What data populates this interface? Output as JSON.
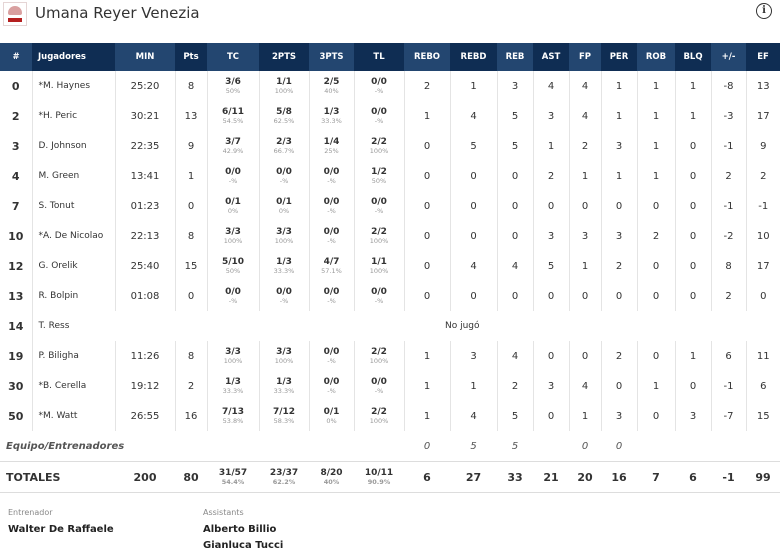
{
  "team": {
    "name": "Umana Reyer Venezia",
    "logo_text": "REYER",
    "info_icon": "info-icon"
  },
  "columns": [
    "#",
    "Jugadores",
    "MIN",
    "Pts",
    "TC",
    "2PTS",
    "3PTS",
    "TL",
    "REBO",
    "REBD",
    "REB",
    "AST",
    "FP",
    "PER",
    "ROB",
    "BLQ",
    "+/-",
    "EF"
  ],
  "players": [
    {
      "num": "0",
      "name": "*M. Haynes",
      "min": "25:20",
      "pts": "8",
      "tc": [
        "3/6",
        "50%"
      ],
      "p2": [
        "1/1",
        "100%"
      ],
      "p3": [
        "2/5",
        "40%"
      ],
      "tl": [
        "0/0",
        "-%"
      ],
      "stats": [
        "2",
        "1",
        "3",
        "4",
        "4",
        "1",
        "1",
        "1",
        "-8",
        "13"
      ]
    },
    {
      "num": "2",
      "name": "*H. Peric",
      "min": "30:21",
      "pts": "13",
      "tc": [
        "6/11",
        "54.5%"
      ],
      "p2": [
        "5/8",
        "62.5%"
      ],
      "p3": [
        "1/3",
        "33.3%"
      ],
      "tl": [
        "0/0",
        "-%"
      ],
      "stats": [
        "1",
        "4",
        "5",
        "3",
        "4",
        "1",
        "1",
        "1",
        "-3",
        "17"
      ]
    },
    {
      "num": "3",
      "name": "D. Johnson",
      "min": "22:35",
      "pts": "9",
      "tc": [
        "3/7",
        "42.9%"
      ],
      "p2": [
        "2/3",
        "66.7%"
      ],
      "p3": [
        "1/4",
        "25%"
      ],
      "tl": [
        "2/2",
        "100%"
      ],
      "stats": [
        "0",
        "5",
        "5",
        "1",
        "2",
        "3",
        "1",
        "0",
        "-1",
        "9"
      ]
    },
    {
      "num": "4",
      "name": "M. Green",
      "min": "13:41",
      "pts": "1",
      "tc": [
        "0/0",
        "-%"
      ],
      "p2": [
        "0/0",
        "-%"
      ],
      "p3": [
        "0/0",
        "-%"
      ],
      "tl": [
        "1/2",
        "50%"
      ],
      "stats": [
        "0",
        "0",
        "0",
        "2",
        "1",
        "1",
        "1",
        "0",
        "2",
        "2"
      ]
    },
    {
      "num": "7",
      "name": "S. Tonut",
      "min": "01:23",
      "pts": "0",
      "tc": [
        "0/1",
        "0%"
      ],
      "p2": [
        "0/1",
        "0%"
      ],
      "p3": [
        "0/0",
        "-%"
      ],
      "tl": [
        "0/0",
        "-%"
      ],
      "stats": [
        "0",
        "0",
        "0",
        "0",
        "0",
        "0",
        "0",
        "0",
        "-1",
        "-1"
      ]
    },
    {
      "num": "10",
      "name": "*A. De Nicolao",
      "min": "22:13",
      "pts": "8",
      "tc": [
        "3/3",
        "100%"
      ],
      "p2": [
        "3/3",
        "100%"
      ],
      "p3": [
        "0/0",
        "-%"
      ],
      "tl": [
        "2/2",
        "100%"
      ],
      "stats": [
        "0",
        "0",
        "0",
        "3",
        "3",
        "3",
        "2",
        "0",
        "-2",
        "10"
      ]
    },
    {
      "num": "12",
      "name": "G. Orelik",
      "min": "25:40",
      "pts": "15",
      "tc": [
        "5/10",
        "50%"
      ],
      "p2": [
        "1/3",
        "33.3%"
      ],
      "p3": [
        "4/7",
        "57.1%"
      ],
      "tl": [
        "1/1",
        "100%"
      ],
      "stats": [
        "0",
        "4",
        "4",
        "5",
        "1",
        "2",
        "0",
        "0",
        "8",
        "17"
      ]
    },
    {
      "num": "13",
      "name": "R. Bolpin",
      "min": "01:08",
      "pts": "0",
      "tc": [
        "0/0",
        "-%"
      ],
      "p2": [
        "0/0",
        "-%"
      ],
      "p3": [
        "0/0",
        "-%"
      ],
      "tl": [
        "0/0",
        "-%"
      ],
      "stats": [
        "0",
        "0",
        "0",
        "0",
        "0",
        "0",
        "0",
        "0",
        "2",
        "0"
      ]
    },
    {
      "num": "14",
      "name": "T. Ress",
      "did_not_play": "No jugó"
    },
    {
      "num": "19",
      "name": "P. Biligha",
      "min": "11:26",
      "pts": "8",
      "tc": [
        "3/3",
        "100%"
      ],
      "p2": [
        "3/3",
        "100%"
      ],
      "p3": [
        "0/0",
        "-%"
      ],
      "tl": [
        "2/2",
        "100%"
      ],
      "stats": [
        "1",
        "3",
        "4",
        "0",
        "0",
        "2",
        "0",
        "1",
        "6",
        "11"
      ]
    },
    {
      "num": "30",
      "name": "*B. Cerella",
      "min": "19:12",
      "pts": "2",
      "tc": [
        "1/3",
        "33.3%"
      ],
      "p2": [
        "1/3",
        "33.3%"
      ],
      "p3": [
        "0/0",
        "-%"
      ],
      "tl": [
        "0/0",
        "-%"
      ],
      "stats": [
        "1",
        "1",
        "2",
        "3",
        "4",
        "0",
        "1",
        "0",
        "-1",
        "6"
      ]
    },
    {
      "num": "50",
      "name": "*M. Watt",
      "min": "26:55",
      "pts": "16",
      "tc": [
        "7/13",
        "53.8%"
      ],
      "p2": [
        "7/12",
        "58.3%"
      ],
      "p3": [
        "0/1",
        "0%"
      ],
      "tl": [
        "2/2",
        "100%"
      ],
      "stats": [
        "1",
        "4",
        "5",
        "0",
        "1",
        "3",
        "0",
        "3",
        "-7",
        "15"
      ]
    }
  ],
  "team_row": {
    "label": "Equipo/Entrenadores",
    "stats": [
      "0",
      "5",
      "5",
      "",
      "0",
      "0",
      "",
      "",
      "",
      ""
    ]
  },
  "totals": {
    "label": "TOTALES",
    "min": "200",
    "pts": "80",
    "tc": [
      "31/57",
      "54.4%"
    ],
    "p2": [
      "23/37",
      "62.2%"
    ],
    "p3": [
      "8/20",
      "40%"
    ],
    "tl": [
      "10/11",
      "90.9%"
    ],
    "stats": [
      "6",
      "27",
      "33",
      "21",
      "20",
      "16",
      "7",
      "6",
      "-1",
      "99"
    ]
  },
  "coach": {
    "label": "Entrenador",
    "name": "Walter De Raffaele"
  },
  "assistants": {
    "label": "Assistants",
    "names": [
      "Alberto Billio",
      "Gianluca Tucci"
    ]
  }
}
